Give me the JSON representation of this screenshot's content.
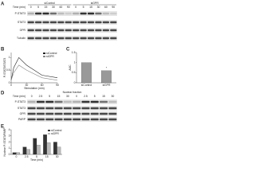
{
  "blots": [
    {
      "label": "A",
      "groups": [
        "siControl",
        "siGPR"
      ],
      "time_label": "Time (min)",
      "times": [
        "0",
        "5",
        "15",
        "30",
        "60",
        "90",
        "0",
        "5",
        "15",
        "30",
        "60",
        "90"
      ],
      "rows": [
        "P-STAT3",
        "STAT3",
        "GPR",
        "Tubulin"
      ]
    },
    {
      "label": "D",
      "title": "Nuclear fraction",
      "time_label": "Time (min)",
      "times": [
        "0",
        "2.5",
        "5",
        "15",
        "30",
        "0",
        "2.5",
        "5",
        "15",
        "30"
      ],
      "rows": [
        "P-STAT3",
        "STAT3",
        "GPR",
        "PARP"
      ]
    }
  ],
  "chart_data": [
    {
      "type": "line",
      "label": "B",
      "y_label": "P-STAT3/STAT3",
      "x_label": "Stimulation (min)",
      "x": [
        0,
        5,
        15,
        30,
        60,
        90
      ],
      "xlim": [
        0,
        90
      ],
      "xticks": [
        0,
        30,
        60,
        90
      ],
      "ylim": [
        0,
        1.2
      ],
      "yticks": [
        0,
        0.5,
        1
      ],
      "series": [
        {
          "name": "siControl",
          "color": "#222222",
          "values": [
            0.1,
            0.6,
            1.0,
            0.7,
            0.3,
            0.2
          ]
        },
        {
          "name": "siGPR",
          "color": "#888888",
          "values": [
            0.1,
            0.4,
            0.7,
            0.5,
            0.2,
            0.1
          ]
        }
      ]
    },
    {
      "type": "bar",
      "label": "C",
      "y_label": "AUC",
      "categories": [
        "siControl",
        "siGPR"
      ],
      "values": [
        1.0,
        0.6
      ],
      "color": "#999999",
      "ylim": [
        0,
        1.5
      ],
      "yticks": [
        0,
        0.5,
        1,
        1.5
      ],
      "annotation": "*"
    },
    {
      "type": "bar",
      "label": "E",
      "y_label": "Nuclear P-STAT3/PARP",
      "x_label": "Time (min)",
      "categories": [
        "0",
        "2.5",
        "5",
        "15",
        "30"
      ],
      "ylim": [
        0,
        4
      ],
      "yticks": [
        0,
        1,
        2,
        3,
        4
      ],
      "series": [
        {
          "name": "siControl",
          "color": "#333333",
          "values": [
            0.3,
            1.2,
            2.6,
            3.2,
            2.0
          ]
        },
        {
          "name": "siGPR",
          "color": "#bbbbbb",
          "values": [
            0.3,
            0.8,
            1.5,
            1.9,
            1.2
          ]
        }
      ]
    }
  ]
}
